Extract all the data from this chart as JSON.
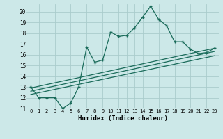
{
  "xlabel": "Humidex (Indice chaleur)",
  "bg_color": "#cce8e8",
  "grid_color": "#aacccc",
  "line_color": "#1a6b5a",
  "xlim": [
    -0.5,
    23.5
  ],
  "ylim": [
    11,
    20.7
  ],
  "yticks": [
    11,
    12,
    13,
    14,
    15,
    16,
    17,
    18,
    19,
    20
  ],
  "xticks": [
    0,
    1,
    2,
    3,
    4,
    5,
    6,
    7,
    8,
    9,
    10,
    11,
    12,
    13,
    14,
    15,
    16,
    17,
    18,
    19,
    20,
    21,
    22,
    23
  ],
  "line1_x": [
    0,
    1,
    2,
    3,
    4,
    5,
    6,
    7,
    8,
    9,
    10,
    11,
    12,
    13,
    14,
    15,
    16,
    17,
    18,
    19,
    20,
    21,
    22,
    23
  ],
  "line1_y": [
    13.0,
    12.0,
    12.0,
    12.0,
    11.0,
    11.5,
    13.0,
    16.7,
    15.3,
    15.5,
    18.1,
    17.7,
    17.8,
    18.5,
    19.5,
    20.5,
    19.3,
    18.7,
    17.2,
    17.2,
    16.5,
    16.1,
    16.2,
    16.6
  ],
  "line2_x": [
    0,
    23
  ],
  "line2_y": [
    12.9,
    16.6
  ],
  "line3_x": [
    0,
    23
  ],
  "line3_y": [
    12.6,
    16.3
  ],
  "line4_x": [
    0,
    23
  ],
  "line4_y": [
    12.3,
    15.9
  ]
}
